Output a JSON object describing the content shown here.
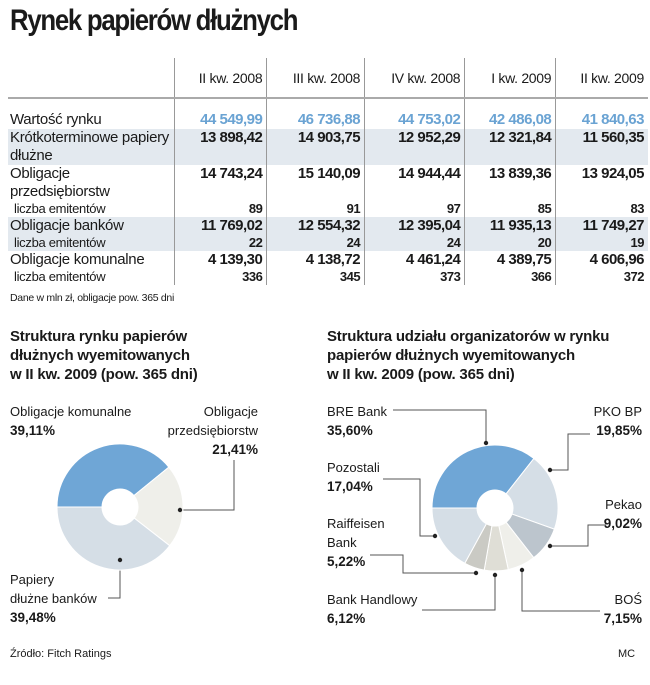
{
  "title": "Rynek papierów dłużnych",
  "table": {
    "columns": [
      "II kw. 2008",
      "III kw. 2008",
      "IV kw. 2008",
      "I kw. 2009",
      "II kw. 2009"
    ],
    "rows": [
      {
        "label": "Wartość rynku",
        "values": [
          "44 549,99",
          "46 736,88",
          "44 753,02",
          "42 486,08",
          "41 840,63"
        ]
      },
      {
        "label": "Krótkoterminowe papiery dłużne",
        "values": [
          "13 898,42",
          "14 903,75",
          "12 952,29",
          "12 321,84",
          "11 560,35"
        ]
      },
      {
        "label": "Obligacje przedsiębiorstw",
        "values": [
          "14 743,24",
          "15 140,09",
          "14 944,44",
          "13 839,36",
          "13 924,05"
        ]
      },
      {
        "label": "liczba emitentów",
        "values": [
          "89",
          "91",
          "97",
          "85",
          "83"
        ]
      },
      {
        "label": "Obligacje banków",
        "values": [
          "11 769,02",
          "12 554,32",
          "12 395,04",
          "11 935,13",
          "11 749,27"
        ]
      },
      {
        "label": "liczba emitentów",
        "values": [
          "22",
          "24",
          "24",
          "20",
          "19"
        ]
      },
      {
        "label": "Obligacje komunalne",
        "values": [
          "4 139,30",
          "4 138,72",
          "4 461,24",
          "4 389,75",
          "4 606,96"
        ]
      },
      {
        "label": "liczba emitentów",
        "values": [
          "336",
          "345",
          "373",
          "366",
          "372"
        ]
      }
    ],
    "note": "Dane w mln zł, obligacje pow. 365 dni"
  },
  "chart_data": [
    {
      "type": "pie",
      "title": "Struktura rynku papierów dłużnych wyemitowanych w II kw. 2009 (pow. 365 dni)",
      "title_lines": [
        "Struktura rynku papierów",
        "dłużnych wyemitowanych",
        "w II kw. 2009 (pow. 365 dni)"
      ],
      "slices": [
        {
          "name": "Obligacje komunalne",
          "value": 39.11,
          "label": "39,11%",
          "color": "#6fa6d6"
        },
        {
          "name": "Obligacje przedsiębiorstw",
          "value": 21.41,
          "label": "21,41%",
          "color": "#efefea"
        },
        {
          "name": "Papiery dłużne banków",
          "value": 39.48,
          "label": "39,48%",
          "color": "#d5dee6"
        }
      ],
      "name_lines": {
        "przeds": [
          "Obligacje",
          "przedsiębiorstw"
        ],
        "banki": [
          "Papiery",
          "dłużne banków"
        ]
      }
    },
    {
      "type": "pie",
      "title": "Struktura udziału organizatorów w rynku papierów dłużnych wyemitowanych w II kw. 2009 (pow. 365 dni)",
      "title_lines": [
        "Struktura udziału organizatorów w rynku",
        "papierów dłużnych wyemitowanych",
        "w II kw. 2009 (pow. 365 dni)"
      ],
      "slices": [
        {
          "name": "BRE Bank",
          "value": 35.6,
          "label": "35,60%",
          "color": "#6fa6d6"
        },
        {
          "name": "PKO BP",
          "value": 19.85,
          "label": "19,85%",
          "color": "#d5dee6"
        },
        {
          "name": "Pekao",
          "value": 9.02,
          "label": "9,02%",
          "color": "#bcc5cd"
        },
        {
          "name": "BOŚ",
          "value": 7.15,
          "label": "7,15%",
          "color": "#efefea"
        },
        {
          "name": "Bank Handlowy",
          "value": 6.12,
          "label": "6,12%",
          "color": "#dfded6"
        },
        {
          "name": "Raiffeisen Bank",
          "value": 5.22,
          "label": "5,22%",
          "color": "#cacac4"
        },
        {
          "name": "Pozostali",
          "value": 17.04,
          "label": "17,04%",
          "color": "#d5dee6"
        }
      ],
      "name_lines": {
        "raif": [
          "Raiffeisen",
          "Bank"
        ]
      }
    }
  ],
  "source": "Źródło: Fitch Ratings",
  "credit": "MC"
}
